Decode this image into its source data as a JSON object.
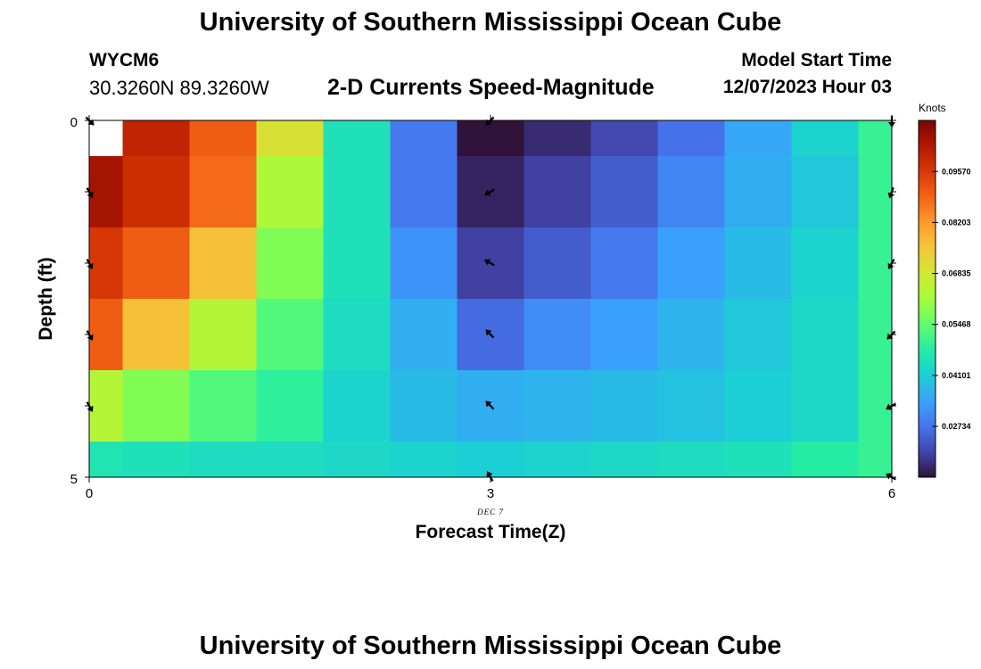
{
  "header": {
    "title": "University of Southern Mississippi Ocean Cube",
    "station_id": "WYCM6",
    "station_coords": "30.3260N  89.3260W",
    "subtitle": "2-D Currents Speed-Magnitude",
    "model_start_label": "Model Start Time",
    "model_start_value": "12/07/2023 Hour 03"
  },
  "footer": {
    "title": "University of Southern Mississippi Ocean Cube"
  },
  "chart_data": {
    "type": "heatmap",
    "title": "2-D Currents Speed-Magnitude",
    "xlabel": "Forecast Time(Z)",
    "ylabel": "Depth (ft)",
    "x_tick_labels": [
      "0",
      "3",
      "6"
    ],
    "x_sub_label": "DEC 7",
    "y_tick_labels": [
      "0",
      "5"
    ],
    "xlim": [
      0,
      6
    ],
    "ylim": [
      0,
      5
    ],
    "time_hours": [
      0,
      0.5,
      1.0,
      1.5,
      2.0,
      2.5,
      3.0,
      3.5,
      4.0,
      4.5,
      5.0,
      5.5,
      6.0
    ],
    "depth_levels": [
      0,
      1,
      2,
      3,
      4,
      5
    ],
    "values": [
      [
        null,
        0.1,
        0.09,
        0.07,
        0.045,
        0.028,
        0.0125,
        0.017,
        0.021,
        0.027,
        0.035,
        0.042,
        0.05
      ],
      [
        0.104,
        0.098,
        0.088,
        0.063,
        0.045,
        0.028,
        0.016,
        0.02,
        0.024,
        0.03,
        0.036,
        0.04,
        0.05
      ],
      [
        0.096,
        0.09,
        0.076,
        0.058,
        0.045,
        0.032,
        0.02,
        0.024,
        0.028,
        0.034,
        0.038,
        0.042,
        0.05
      ],
      [
        0.09,
        0.076,
        0.064,
        0.053,
        0.044,
        0.036,
        0.026,
        0.031,
        0.034,
        0.037,
        0.04,
        0.043,
        0.05
      ],
      [
        0.064,
        0.058,
        0.053,
        0.049,
        0.042,
        0.038,
        0.036,
        0.037,
        0.038,
        0.039,
        0.041,
        0.043,
        0.05
      ],
      [
        0.046,
        0.045,
        0.044,
        0.044,
        0.043,
        0.042,
        0.041,
        0.042,
        0.043,
        0.044,
        0.045,
        0.048,
        0.05
      ]
    ],
    "arrows": [
      {
        "t": 0,
        "d": 0,
        "dir_deg": 135
      },
      {
        "t": 0,
        "d": 1,
        "dir_deg": 150
      },
      {
        "t": 0,
        "d": 2,
        "dir_deg": 150
      },
      {
        "t": 0,
        "d": 3,
        "dir_deg": 150
      },
      {
        "t": 0,
        "d": 4,
        "dir_deg": 150
      },
      {
        "t": 3,
        "d": 0,
        "dir_deg": 225
      },
      {
        "t": 3,
        "d": 1,
        "dir_deg": 240
      },
      {
        "t": 3,
        "d": 2,
        "dir_deg": 300
      },
      {
        "t": 3,
        "d": 3,
        "dir_deg": 315
      },
      {
        "t": 3,
        "d": 4,
        "dir_deg": 315
      },
      {
        "t": 3,
        "d": 5,
        "dir_deg": 330
      },
      {
        "t": 6,
        "d": 0,
        "dir_deg": 180
      },
      {
        "t": 6,
        "d": 1,
        "dir_deg": 200
      },
      {
        "t": 6,
        "d": 2,
        "dir_deg": 210
      },
      {
        "t": 6,
        "d": 3,
        "dir_deg": 225
      },
      {
        "t": 6,
        "d": 4,
        "dir_deg": 240
      },
      {
        "t": 6,
        "d": 5,
        "dir_deg": 300
      }
    ],
    "colorbar": {
      "label": "Knots",
      "range": [
        0.0137,
        0.1094
      ],
      "tick_values": [
        0.02734,
        0.04101,
        0.05468,
        0.06835,
        0.08203,
        0.0957
      ],
      "tick_labels": [
        "0.02734",
        "0.04101",
        "0.05468",
        "0.06835",
        "0.08203",
        "0.09570"
      ]
    },
    "colormap_stops": [
      "#30123b",
      "#4145ab",
      "#4675ed",
      "#39a2fc",
      "#1bcfd4",
      "#24eca6",
      "#61fc6c",
      "#a4fc3b",
      "#d1e834",
      "#f3c63a",
      "#fe9b2d",
      "#f36315",
      "#d93806",
      "#b11901",
      "#7a0402"
    ]
  }
}
